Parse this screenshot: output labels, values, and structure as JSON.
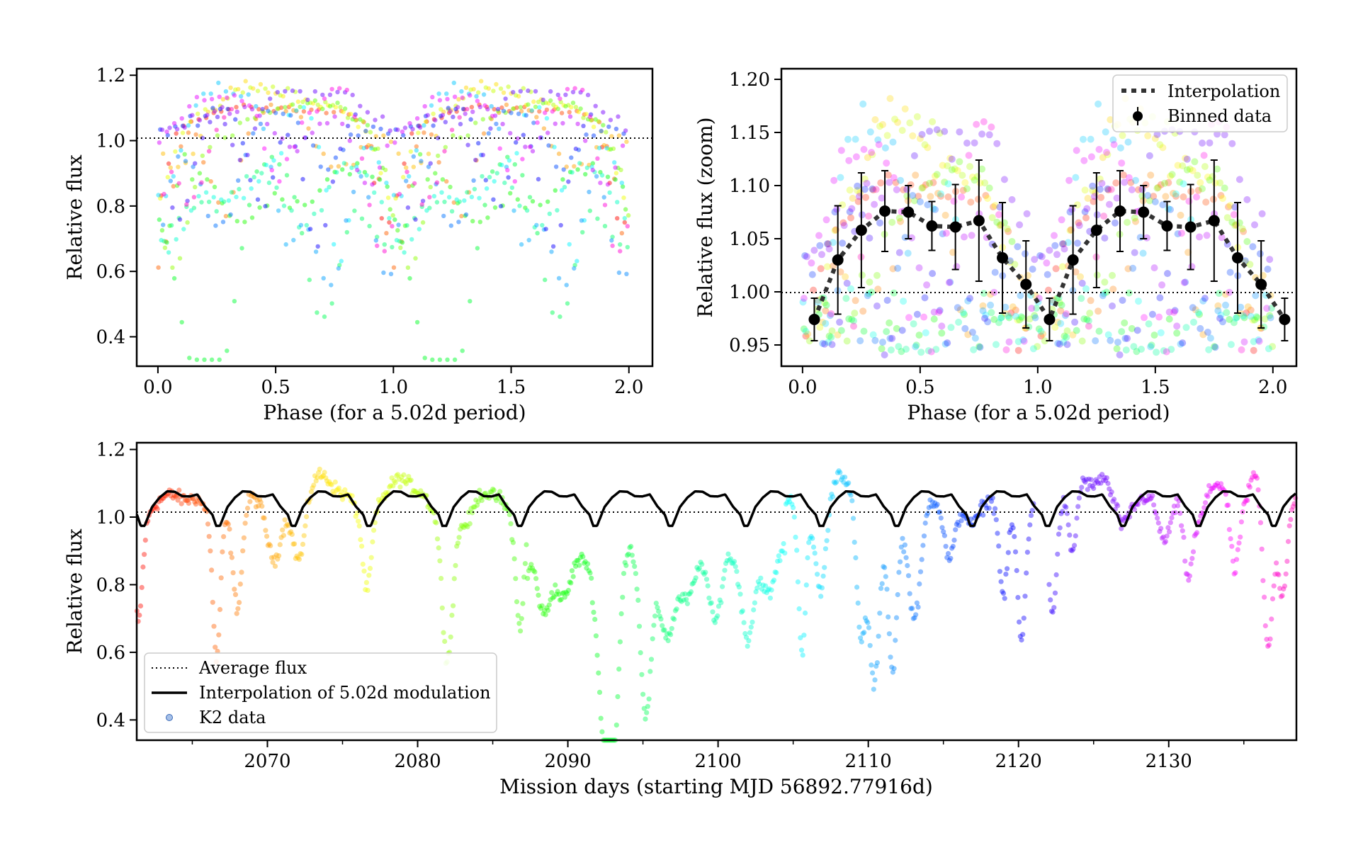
{
  "panels": {
    "top_left": {
      "ylabel": "Relative flux",
      "xlabel": "Phase (for a 5.02d period)",
      "xticks": [
        "0.0",
        "0.5",
        "1.0",
        "1.5",
        "2.0"
      ],
      "yticks": [
        "0.4",
        "0.6",
        "0.8",
        "1.0",
        "1.2"
      ]
    },
    "top_right": {
      "ylabel": "Relative flux (zoom)",
      "xlabel": "Phase (for a 5.02d period)",
      "xticks": [
        "0.0",
        "0.5",
        "1.0",
        "1.5",
        "2.0"
      ],
      "yticks": [
        "0.95",
        "1.00",
        "1.05",
        "1.10",
        "1.15",
        "1.20"
      ],
      "legend": {
        "interp": "Interpolation",
        "binned": "Binned data"
      }
    },
    "bottom": {
      "ylabel": "Relative flux",
      "xlabel": "Mission days (starting MJD 56892.77916d)",
      "xticks": [
        "2070",
        "2080",
        "2090",
        "2100",
        "2110",
        "2120",
        "2130"
      ],
      "yticks": [
        "0.4",
        "0.6",
        "0.8",
        "1.0",
        "1.2"
      ],
      "legend": {
        "avg": "Average flux",
        "interp": "Interpolation of 5.02d modulation",
        "k2": "K2 data"
      }
    }
  },
  "chart_data": [
    {
      "type": "scatter",
      "panel": "top_left",
      "xlabel": "Phase (for a 5.02d period)",
      "ylabel": "Relative flux",
      "xlim": [
        -0.09,
        2.1
      ],
      "ylim": [
        0.31,
        1.22
      ],
      "reference_line": 1.0,
      "note_colors": "points colored by time (rainbow hue), period 5.02 d folded twice"
    },
    {
      "type": "scatter",
      "panel": "top_right",
      "xlabel": "Phase (for a 5.02d period)",
      "ylabel": "Relative flux (zoom)",
      "xlim": [
        -0.09,
        2.1
      ],
      "ylim": [
        0.93,
        1.21
      ],
      "reference_line": 1.0,
      "binned": {
        "x": [
          0.05,
          0.15,
          0.25,
          0.35,
          0.45,
          0.55,
          0.65,
          0.75,
          0.85,
          0.95,
          1.05,
          1.15,
          1.25,
          1.35,
          1.45,
          1.55,
          1.65,
          1.75,
          1.85,
          1.95,
          2.05
        ],
        "y": [
          0.974,
          1.03,
          1.058,
          1.076,
          1.075,
          1.062,
          1.061,
          1.067,
          1.032,
          1.007,
          0.974,
          1.03,
          1.058,
          1.076,
          1.075,
          1.062,
          1.061,
          1.067,
          1.032,
          1.007,
          0.974
        ],
        "err": [
          0.02,
          0.051,
          0.054,
          0.038,
          0.025,
          0.023,
          0.04,
          0.057,
          0.052,
          0.041,
          0.02,
          0.051,
          0.054,
          0.038,
          0.025,
          0.023,
          0.04,
          0.057,
          0.052,
          0.041,
          0.02
        ]
      }
    },
    {
      "type": "line",
      "panel": "bottom",
      "xlabel": "Mission days (starting MJD 56892.77916d)",
      "ylabel": "Relative flux",
      "xlim": [
        2061.3,
        2138.5
      ],
      "ylim": [
        0.34,
        1.22
      ],
      "period": 5.02,
      "phase_start": 2061.57,
      "modulation_phase": [
        0.0,
        0.05,
        0.15,
        0.25,
        0.35,
        0.45,
        0.55,
        0.65,
        0.75,
        0.85,
        0.95,
        1.0
      ],
      "modulation_flux": [
        0.974,
        0.974,
        1.03,
        1.058,
        1.076,
        1.075,
        1.062,
        1.061,
        1.067,
        1.032,
        1.007,
        0.974
      ],
      "reference_line": 1.0
    }
  ]
}
